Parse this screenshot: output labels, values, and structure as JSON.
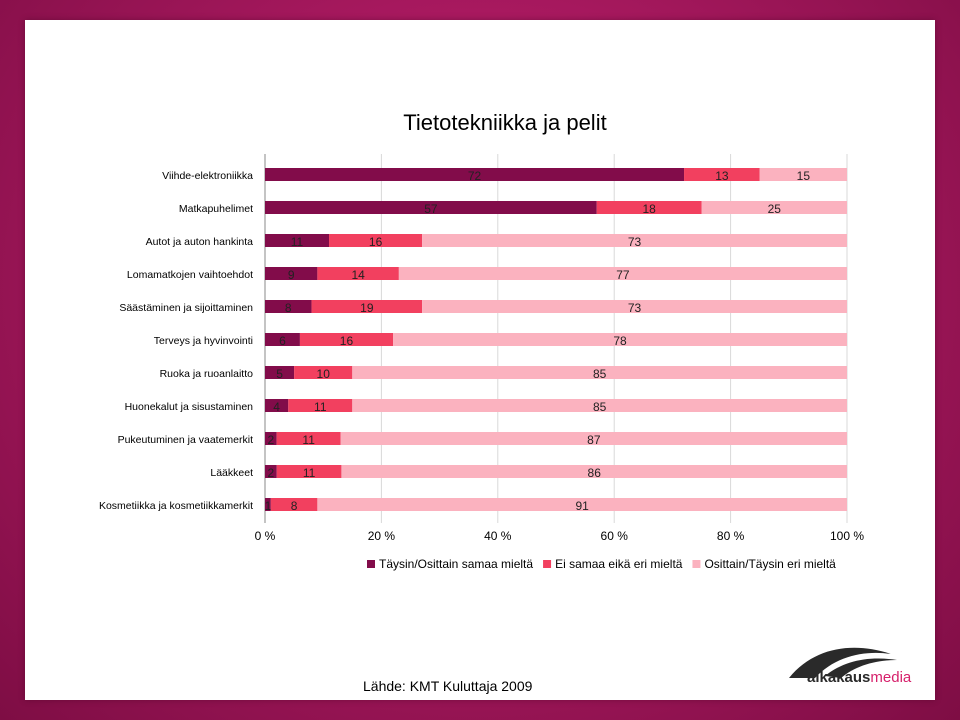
{
  "colors": {
    "series1": "#820c4a",
    "series2": "#f2405f",
    "series3": "#fbb2bf"
  },
  "chart_data": {
    "type": "bar",
    "orientation": "horizontal",
    "stacked": "percent",
    "title": "Tietotekniikka ja pelit",
    "categories": [
      "Viihde-elektroniikka",
      "Matkapuhelimet",
      "Autot ja auton hankinta",
      "Lomamatkojen vaihtoehdot",
      "Säästäminen ja sijoittaminen",
      "Terveys ja hyvinvointi",
      "Ruoka ja ruoanlaitto",
      "Huonekalut ja sisustaminen",
      "Pukeutuminen ja vaatemerkit",
      "Lääkkeet",
      "Kosmetiikka ja kosmetiikkamerkit"
    ],
    "series": [
      {
        "name": "Täysin/Osittain samaa mieltä",
        "values": [
          72,
          57,
          11,
          9,
          8,
          6,
          5,
          4,
          2,
          2,
          1
        ]
      },
      {
        "name": "Ei samaa eikä eri mieltä",
        "values": [
          13,
          18,
          16,
          14,
          19,
          16,
          10,
          11,
          11,
          11,
          8
        ]
      },
      {
        "name": "Osittain/Täysin eri mieltä",
        "values": [
          15,
          25,
          73,
          77,
          73,
          78,
          85,
          85,
          87,
          86,
          91
        ]
      }
    ],
    "xticks": [
      "0 %",
      "20 %",
      "40 %",
      "60 %",
      "80 %",
      "100 %"
    ],
    "xlim": [
      0,
      100
    ],
    "grid": true,
    "legend": "bottom"
  },
  "source": "Lähde: KMT Kuluttaja 2009",
  "logo": {
    "text_dark": "aikakaus",
    "text_accent": "media"
  }
}
